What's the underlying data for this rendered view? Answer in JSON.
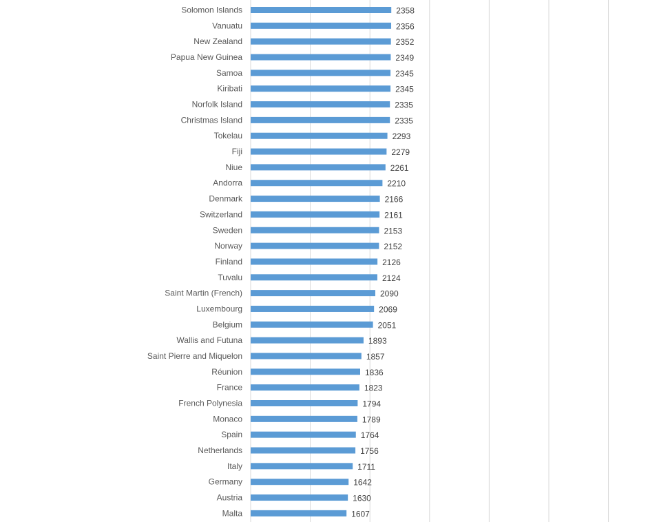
{
  "chart_data": {
    "type": "bar",
    "orientation": "horizontal",
    "grid": true,
    "bar_color": "#5b9bd5",
    "categories": [
      "Solomon Islands",
      "Vanuatu",
      "New Zealand",
      "Papua New Guinea",
      "Samoa",
      "Kiribati",
      "Norfolk Island",
      "Christmas Island",
      "Tokelau",
      "Fiji",
      "Niue",
      "Andorra",
      "Denmark",
      "Switzerland",
      "Sweden",
      "Norway",
      "Finland",
      "Tuvalu",
      "Saint Martin (French)",
      "Luxembourg",
      "Belgium",
      "Wallis and Futuna",
      "Saint Pierre and Miquelon",
      "Réunion",
      "France",
      "French Polynesia",
      "Monaco",
      "Spain",
      "Netherlands",
      "Italy",
      "Germany",
      "Austria",
      "Malta"
    ],
    "values": [
      2358,
      2356,
      2352,
      2349,
      2345,
      2345,
      2335,
      2335,
      2293,
      2279,
      2261,
      2210,
      2166,
      2161,
      2153,
      2152,
      2126,
      2124,
      2090,
      2069,
      2051,
      1893,
      1857,
      1836,
      1823,
      1794,
      1789,
      1764,
      1756,
      1711,
      1642,
      1630,
      1607
    ],
    "xlim": [
      0,
      6000
    ],
    "x_gridlines": [
      0,
      1000,
      2000,
      3000,
      4000,
      5000,
      6000
    ]
  }
}
